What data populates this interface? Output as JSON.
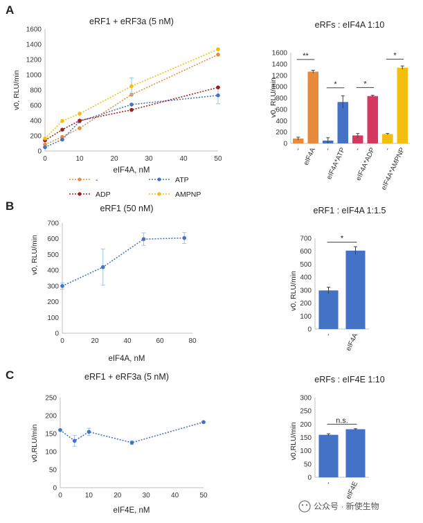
{
  "panels": {
    "A": "A",
    "B": "B",
    "C": "C"
  },
  "watermark": "公众号 · 新使生物",
  "colors": {
    "orange": "#E98A3B",
    "blue": "#4472C4",
    "darkred": "#A11E1E",
    "gold": "#F2BE10",
    "pink": "#D63864",
    "errbar": "#9DC3E6",
    "axis": "#BFBFBF"
  },
  "legend": [
    {
      "label": "-",
      "color": "#E98A3B"
    },
    {
      "label": "ATP",
      "color": "#4472C4"
    },
    {
      "label": "ADP",
      "color": "#A11E1E"
    },
    {
      "label": "AMPNP",
      "color": "#F2BE10"
    }
  ],
  "chart_data": [
    {
      "id": "A_line",
      "type": "line",
      "title": "eRF1 + eRF3a (5 nM)",
      "xlabel": "eIF4A, nM",
      "ylabel": "v0, RLU/min",
      "x": [
        0,
        5,
        10,
        25,
        50
      ],
      "xlim": [
        0,
        50
      ],
      "xticks": [
        0,
        10,
        20,
        30,
        40,
        50
      ],
      "ylim": [
        0,
        1600
      ],
      "yticks": [
        0,
        200,
        400,
        600,
        800,
        1000,
        1200,
        1400,
        1600
      ],
      "series": [
        {
          "name": "-",
          "color": "#E98A3B",
          "values": [
            85,
            185,
            300,
            740,
            1265
          ],
          "errors": [
            0,
            0,
            0,
            0,
            0
          ]
        },
        {
          "name": "ATP",
          "color": "#4472C4",
          "values": [
            50,
            150,
            390,
            610,
            730
          ],
          "errors": [
            0,
            0,
            0,
            0,
            110
          ]
        },
        {
          "name": "ADP",
          "color": "#A11E1E",
          "values": [
            140,
            280,
            400,
            540,
            835
          ],
          "errors": [
            0,
            0,
            0,
            0,
            0
          ]
        },
        {
          "name": "AMPNP",
          "color": "#F2BE10",
          "values": [
            165,
            395,
            490,
            850,
            1335
          ],
          "errors": [
            0,
            0,
            0,
            110,
            0
          ]
        }
      ]
    },
    {
      "id": "A_bar",
      "type": "bar",
      "title": "eRFs : eIF4A 1:10",
      "ylabel": "v0, RLU/min",
      "categories": [
        "-",
        "eIF4A",
        "-",
        "eIF4A*ATP",
        "-",
        "eIF4A*ADP",
        "-",
        "eIF4A*AMPNP"
      ],
      "values": [
        85,
        1265,
        50,
        730,
        140,
        835,
        165,
        1335
      ],
      "errors": [
        25,
        25,
        50,
        110,
        35,
        15,
        10,
        30
      ],
      "colors": [
        "#E98A3B",
        "#E98A3B",
        "#4472C4",
        "#4472C4",
        "#D63864",
        "#D63864",
        "#F2BE10",
        "#F2BE10"
      ],
      "ylim": [
        0,
        1600
      ],
      "yticks": [
        0,
        200,
        400,
        600,
        800,
        1000,
        1200,
        1400,
        1600
      ],
      "significance": [
        {
          "from": 0,
          "to": 1,
          "label": "**",
          "y": 1480
        },
        {
          "from": 2,
          "to": 3,
          "label": "*",
          "y": 980
        },
        {
          "from": 4,
          "to": 5,
          "label": "*",
          "y": 985
        },
        {
          "from": 6,
          "to": 7,
          "label": "*",
          "y": 1485
        }
      ]
    },
    {
      "id": "B_line",
      "type": "line",
      "title": "eRF1 (50 nM)",
      "xlabel": "eIF4A, nM",
      "ylabel": "v0, RLU/min",
      "x": [
        0,
        25,
        50,
        75
      ],
      "xlim": [
        0,
        80
      ],
      "xticks": [
        0,
        20,
        40,
        60,
        80
      ],
      "ylim": [
        0,
        700
      ],
      "yticks": [
        0,
        100,
        200,
        300,
        400,
        500,
        600,
        700
      ],
      "series": [
        {
          "name": "eRF1",
          "color": "#4472C4",
          "values": [
            300,
            420,
            598,
            605
          ],
          "errors": [
            20,
            115,
            40,
            35
          ]
        }
      ]
    },
    {
      "id": "B_bar",
      "type": "bar",
      "title": "eRF1 : eIF4A 1:1.5",
      "ylabel": "v0, RLU/min",
      "categories": [
        "-",
        "eIF4A"
      ],
      "values": [
        298,
        605
      ],
      "errors": [
        25,
        30
      ],
      "colors": [
        "#4472C4",
        "#4472C4"
      ],
      "ylim": [
        0,
        700
      ],
      "yticks": [
        0,
        100,
        200,
        300,
        400,
        500,
        600,
        700
      ],
      "significance": [
        {
          "from": 0,
          "to": 1,
          "label": "*",
          "y": 670
        }
      ]
    },
    {
      "id": "C_line",
      "type": "line",
      "title": "eRF1 + eRF3a (5 nM)",
      "xlabel": "eIF4E, nM",
      "ylabel": "v0,RLU/min",
      "x": [
        0,
        5,
        10,
        25,
        50
      ],
      "xlim": [
        0,
        50
      ],
      "xticks": [
        0,
        10,
        20,
        30,
        40,
        50
      ],
      "ylim": [
        0,
        250
      ],
      "yticks": [
        0,
        50,
        100,
        150,
        200,
        250
      ],
      "series": [
        {
          "name": "eRF1 + eRF3a",
          "color": "#4472C4",
          "values": [
            160,
            130,
            155,
            125,
            182
          ],
          "errors": [
            2,
            15,
            10,
            5,
            2
          ]
        }
      ]
    },
    {
      "id": "C_bar",
      "type": "bar",
      "title": "eRFs : eIF4E 1:10",
      "ylabel": "v0,RLU/min",
      "categories": [
        "-",
        "eIF4E"
      ],
      "values": [
        160,
        181
      ],
      "errors": [
        4,
        2
      ],
      "colors": [
        "#4472C4",
        "#4472C4"
      ],
      "ylim": [
        0,
        300
      ],
      "yticks": [
        0,
        50,
        100,
        150,
        200,
        250,
        300
      ],
      "significance": [
        {
          "from": 0,
          "to": 1,
          "label": "n.s.",
          "y": 200
        }
      ]
    }
  ]
}
